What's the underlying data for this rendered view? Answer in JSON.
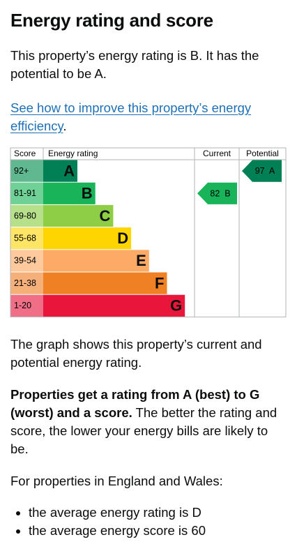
{
  "heading": "Energy rating and score",
  "intro": "This property’s energy rating is B. It has the potential to be A.",
  "link": {
    "text": "See how to improve this property’s energy efficiency",
    "suffix": "."
  },
  "graph": {
    "headers": {
      "score": "Score",
      "rating": "Energy rating",
      "current": "Current",
      "potential": "Potential"
    },
    "bands": [
      {
        "score": "92+",
        "rating": "A",
        "color": "#008054",
        "light": "#5fb88f"
      },
      {
        "score": "81-91",
        "rating": "B",
        "color": "#19b459",
        "light": "#6fd196"
      },
      {
        "score": "69-80",
        "rating": "C",
        "color": "#8dce46",
        "light": "#b6e08a"
      },
      {
        "score": "55-68",
        "rating": "D",
        "color": "#ffd500",
        "light": "#ffe566"
      },
      {
        "score": "39-54",
        "rating": "E",
        "color": "#fcaa65",
        "light": "#fdc99d"
      },
      {
        "score": "21-38",
        "rating": "F",
        "color": "#ef8023",
        "light": "#f5b07a"
      },
      {
        "score": "1-20",
        "rating": "G",
        "color": "#e9153b",
        "light": "#f06f87"
      }
    ],
    "current": {
      "score": 82,
      "rating": "B"
    },
    "potential": {
      "score": 97,
      "rating": "A"
    }
  },
  "graph_note": "The graph shows this property’s current and potential energy rating.",
  "explainer": {
    "bold": "Properties get a rating from A (best) to G (worst) and a score.",
    "rest": " The better the rating and score, the lower your energy bills are likely to be."
  },
  "regional": "For properties in England and Wales:",
  "averages": [
    "the average energy rating is D",
    "the average energy score is 60"
  ]
}
